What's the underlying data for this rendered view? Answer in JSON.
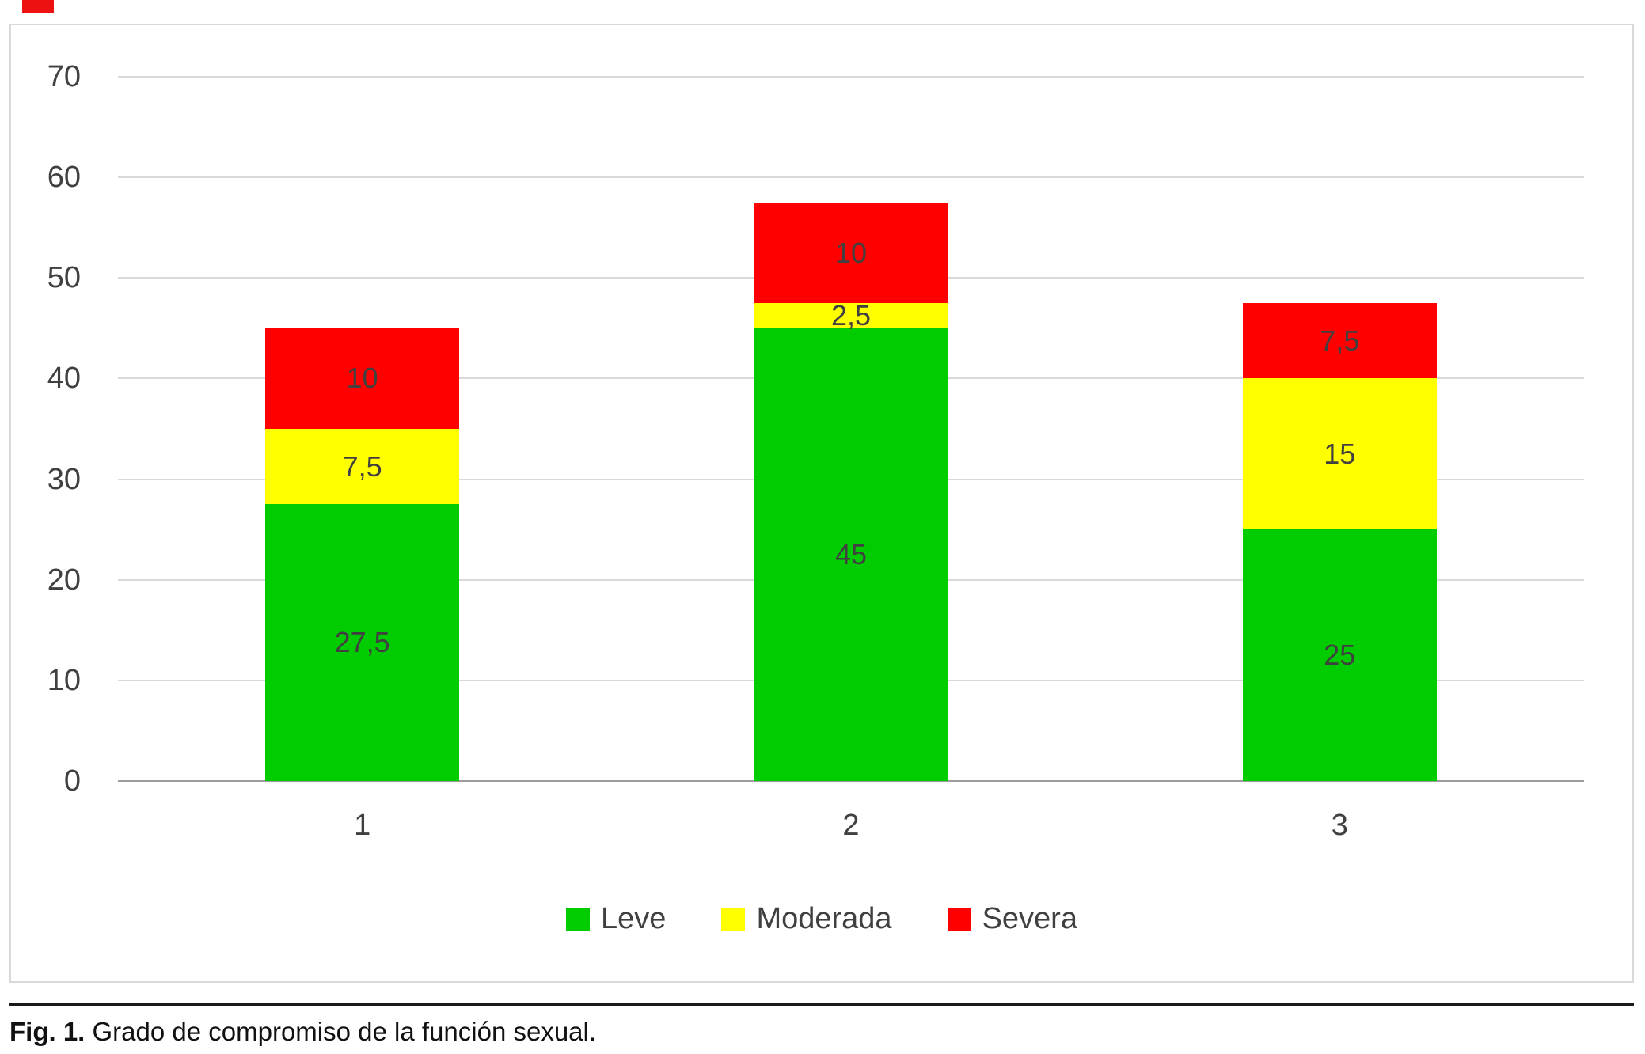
{
  "figure": {
    "caption": {
      "label": "Fig. 1.",
      "text": " Grado de compromiso de la función sexual."
    }
  },
  "chart_data": {
    "type": "bar",
    "stacked": true,
    "title": "",
    "xlabel": "",
    "ylabel": "",
    "categories": [
      "1",
      "2",
      "3"
    ],
    "series": [
      {
        "name": "Leve",
        "color": "#00cc00",
        "values": [
          27.5,
          45,
          25
        ],
        "labels": [
          "27,5",
          "45",
          "25"
        ]
      },
      {
        "name": "Moderada",
        "color": "#ffff00",
        "values": [
          7.5,
          2.5,
          15
        ],
        "labels": [
          "7,5",
          "2,5",
          "15"
        ]
      },
      {
        "name": "Severa",
        "color": "#ff0000",
        "values": [
          10,
          10,
          7.5
        ],
        "labels": [
          "10",
          "10",
          "7,5"
        ]
      }
    ],
    "totals": [
      45,
      57.5,
      47.5
    ],
    "ylim": [
      0,
      70
    ],
    "yticks": [
      0,
      10,
      20,
      30,
      40,
      50,
      60,
      70
    ],
    "grid": true,
    "gridline_color": "#d9d9d9",
    "axis_text_color": "#404040",
    "legend_position": "bottom"
  }
}
